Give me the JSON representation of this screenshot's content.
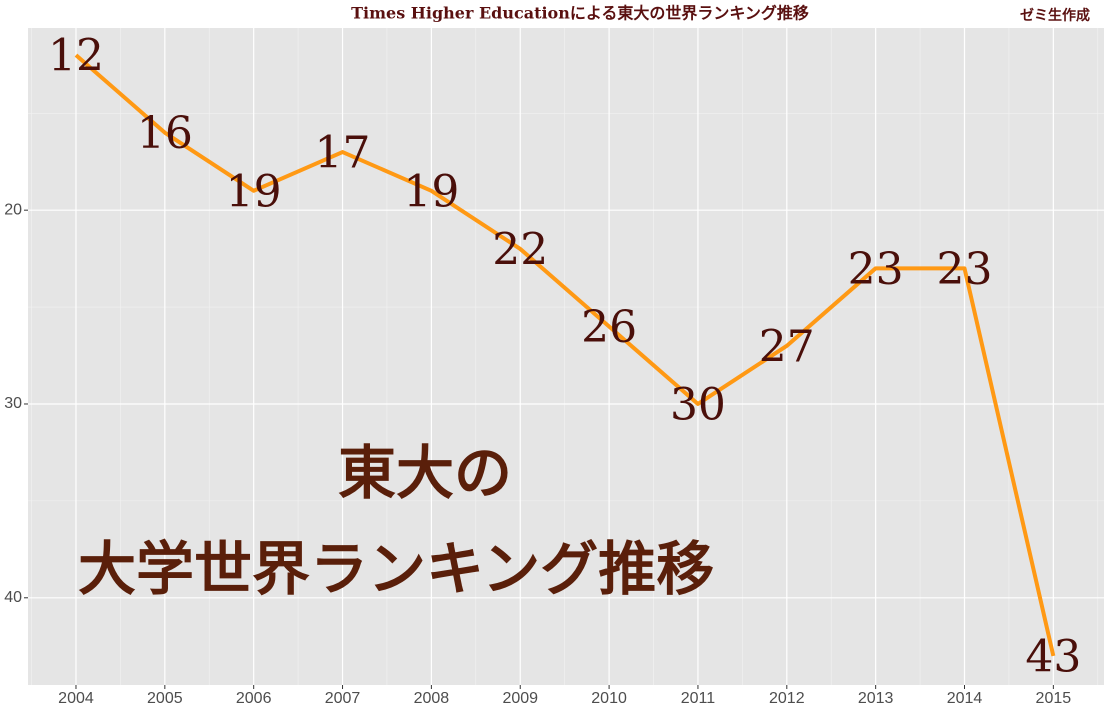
{
  "chart_data": {
    "type": "line",
    "title": "Times Higher Educationによる東大の世界ランキング推移",
    "caption": "ゼミ生作成",
    "annotations": [
      "東大の",
      "大学世界ランキング推移"
    ],
    "x": [
      2004,
      2005,
      2006,
      2007,
      2008,
      2009,
      2010,
      2011,
      2012,
      2013,
      2014,
      2015
    ],
    "values": [
      12,
      16,
      19,
      17,
      19,
      22,
      26,
      30,
      27,
      23,
      23,
      43
    ],
    "color": "#ff9914",
    "label_color": "#4a0f0a",
    "xlim": [
      2003.46,
      2015.57
    ],
    "xticks": [
      2004,
      2005,
      2006,
      2007,
      2008,
      2009,
      2010,
      2011,
      2012,
      2013,
      2014,
      2015
    ],
    "ylim": [
      10.6,
      44.5
    ],
    "yticks": [
      20,
      30,
      40
    ],
    "y_reversed": true,
    "grid": true
  }
}
